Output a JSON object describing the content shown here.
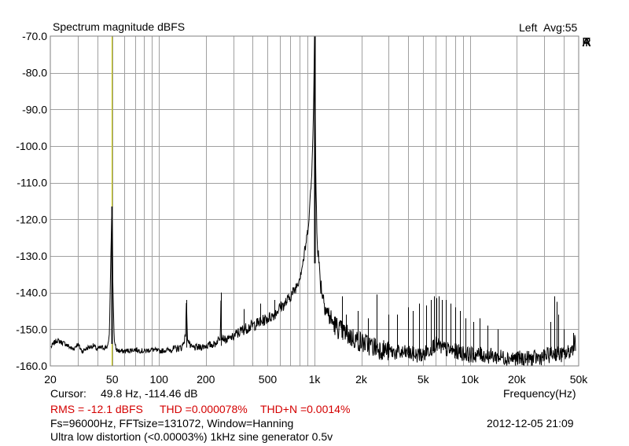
{
  "chart_data": {
    "type": "line",
    "title": "Spectrum magnitude dBFS",
    "channel_label": "Left",
    "averaging_label": "Avg:55",
    "brand": [
      "A",
      "R",
      "T",
      "A"
    ],
    "xlabel": "Frequency(Hz)",
    "ylabel": "",
    "xscale": "log",
    "xlim": [
      20,
      50000
    ],
    "ylim": [
      -160,
      -70
    ],
    "grid": true,
    "x_ticks": [
      20,
      50,
      100,
      200,
      500,
      1000,
      2000,
      5000,
      10000,
      20000,
      50000
    ],
    "x_tick_labels": [
      "20",
      "50",
      "100",
      "200",
      "500",
      "1k",
      "2k",
      "5k",
      "10k",
      "20k",
      "50k"
    ],
    "y_ticks": [
      -70,
      -80,
      -90,
      -100,
      -110,
      -120,
      -130,
      -140,
      -150,
      -160
    ],
    "y_tick_labels": [
      "-70.0",
      "-80.0",
      "-90.0",
      "-100.0",
      "-110.0",
      "-120.0",
      "-130.0",
      "-140.0",
      "-150.0",
      "-160.0"
    ],
    "cursor_x": 49.8,
    "colors": {
      "trace": "#000000",
      "cursor": "#c8c800",
      "grid": "#a0a0a0",
      "frame": "#808080",
      "stats": "#d40000"
    },
    "series": [
      {
        "x": [
          20,
          22,
          25,
          28,
          30,
          32,
          35,
          38,
          40,
          42,
          45,
          47,
          48,
          49,
          49.8,
          50.5,
          51.5,
          53,
          56,
          60,
          70,
          80,
          90,
          100,
          120,
          140,
          148,
          150,
          152,
          160,
          180,
          200,
          230,
          248,
          250,
          252,
          270,
          300,
          350,
          400,
          450,
          500,
          550,
          600,
          650,
          700,
          750,
          800,
          850,
          900,
          930,
          960,
          980,
          990,
          1000,
          1010,
          1020,
          1040,
          1070,
          1100,
          1150,
          1200,
          1300,
          1400,
          1500,
          1700,
          2000,
          2500,
          3000,
          3500,
          4000,
          4500,
          5000,
          5500,
          6000,
          6500,
          7000,
          8000,
          9000,
          10000,
          12000,
          15000,
          20000,
          25000,
          30000,
          35000,
          40000,
          44000,
          46000,
          47000,
          48000
        ],
        "y": [
          -155,
          -153,
          -154,
          -155.5,
          -154,
          -156,
          -155,
          -154.5,
          -155.5,
          -155,
          -155,
          -154.5,
          -151,
          -130,
          -116.5,
          -138,
          -153,
          -155.5,
          -156,
          -156,
          -155.5,
          -156,
          -155.5,
          -156,
          -155.5,
          -155,
          -152,
          -142,
          -152,
          -155,
          -155,
          -154.5,
          -154,
          -152,
          -140,
          -152,
          -153,
          -152,
          -150,
          -149,
          -148,
          -147,
          -146,
          -144,
          -143,
          -141,
          -139,
          -136,
          -131,
          -124,
          -117,
          -108,
          -95,
          -85,
          -70,
          -88,
          -110,
          -124,
          -133,
          -138,
          -142,
          -145,
          -148,
          -149.5,
          -150.5,
          -152,
          -153.5,
          -155,
          -156,
          -156.5,
          -156.5,
          -157,
          -157,
          -155.5,
          -154,
          -155,
          -155.5,
          -156,
          -156.5,
          -157,
          -157,
          -157.5,
          -158,
          -158,
          -157.5,
          -156.5,
          -157,
          -156,
          -155,
          -153,
          -154
        ]
      }
    ],
    "spurs": [
      {
        "x": 150,
        "top": -142,
        "bottom": -155
      },
      {
        "x": 250,
        "top": -140,
        "bottom": -154.5
      },
      {
        "x": 350,
        "top": -144.5,
        "bottom": -151
      },
      {
        "x": 450,
        "top": -143,
        "bottom": -149
      },
      {
        "x": 550,
        "top": -142,
        "bottom": -146
      },
      {
        "x": 650,
        "top": -141.5,
        "bottom": -143
      },
      {
        "x": 1500,
        "top": -141,
        "bottom": -151
      },
      {
        "x": 1600,
        "top": -146,
        "bottom": -151.5
      },
      {
        "x": 1900,
        "top": -145,
        "bottom": -153
      },
      {
        "x": 2200,
        "top": -147,
        "bottom": -154
      },
      {
        "x": 2500,
        "top": -140.5,
        "bottom": -155
      },
      {
        "x": 3000,
        "top": -146,
        "bottom": -156
      },
      {
        "x": 3400,
        "top": -146,
        "bottom": -156
      },
      {
        "x": 4000,
        "top": -144,
        "bottom": -156.5
      },
      {
        "x": 4300,
        "top": -145,
        "bottom": -156.5
      },
      {
        "x": 4700,
        "top": -143,
        "bottom": -157
      },
      {
        "x": 5200,
        "top": -143.5,
        "bottom": -157
      },
      {
        "x": 5600,
        "top": -142,
        "bottom": -156
      },
      {
        "x": 5900,
        "top": -141,
        "bottom": -155.5
      },
      {
        "x": 6100,
        "top": -141.5,
        "bottom": -155
      },
      {
        "x": 6300,
        "top": -141,
        "bottom": -155
      },
      {
        "x": 6600,
        "top": -142,
        "bottom": -155
      },
      {
        "x": 7000,
        "top": -142,
        "bottom": -155.5
      },
      {
        "x": 7500,
        "top": -143,
        "bottom": -156
      },
      {
        "x": 8000,
        "top": -144,
        "bottom": -156
      },
      {
        "x": 8600,
        "top": -145,
        "bottom": -156.5
      },
      {
        "x": 9300,
        "top": -147,
        "bottom": -157
      },
      {
        "x": 10500,
        "top": -148,
        "bottom": -157
      },
      {
        "x": 11500,
        "top": -147,
        "bottom": -157
      },
      {
        "x": 13000,
        "top": -149,
        "bottom": -157.5
      },
      {
        "x": 15000,
        "top": -150,
        "bottom": -157.5
      },
      {
        "x": 33000,
        "top": -148,
        "bottom": -157
      },
      {
        "x": 35000,
        "top": -141,
        "bottom": -157
      },
      {
        "x": 36000,
        "top": -142.5,
        "bottom": -157
      },
      {
        "x": 37000,
        "top": -146,
        "bottom": -157
      },
      {
        "x": 40000,
        "top": -150,
        "bottom": -157
      },
      {
        "x": 46000,
        "top": -151,
        "bottom": -156
      }
    ]
  },
  "cursor": {
    "label": "Cursor:",
    "value": "49.8 Hz, -114.46 dB"
  },
  "stats": {
    "rms": "RMS =  -12.1 dBFS",
    "thd": "THD =0.000078%",
    "thdn": "THD+N =0.0014%"
  },
  "settings": "Fs=96000Hz, FFTsize=131072, Window=Hanning",
  "timestamp": "2012-12-05  21:09",
  "description": "Ultra low distortion (<0.00003%) 1kHz sine generator 0.5v"
}
